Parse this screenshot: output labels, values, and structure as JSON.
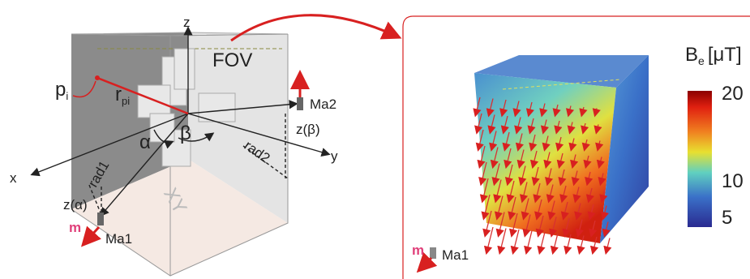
{
  "left_panel": {
    "axes": {
      "z": "z",
      "x": "x",
      "y": "y"
    },
    "fov": "FOV",
    "point": {
      "label": "p",
      "subscript": "i"
    },
    "vector": {
      "label": "r",
      "subscript": "pi"
    },
    "angles": {
      "alpha": "α",
      "beta": "β"
    },
    "radii": [
      "rad1",
      "rad2"
    ],
    "heights": [
      "z(α)",
      "z(β)"
    ],
    "plane": "XY",
    "magnets": [
      "Ma2",
      "Ma1"
    ],
    "moment": "m"
  },
  "right_panel": {
    "colorbar": {
      "label": "B",
      "subscript": "e",
      "unit": "[μT]",
      "ticks": [
        20,
        10,
        5
      ]
    },
    "moment": "m",
    "magnet": "Ma1"
  }
}
